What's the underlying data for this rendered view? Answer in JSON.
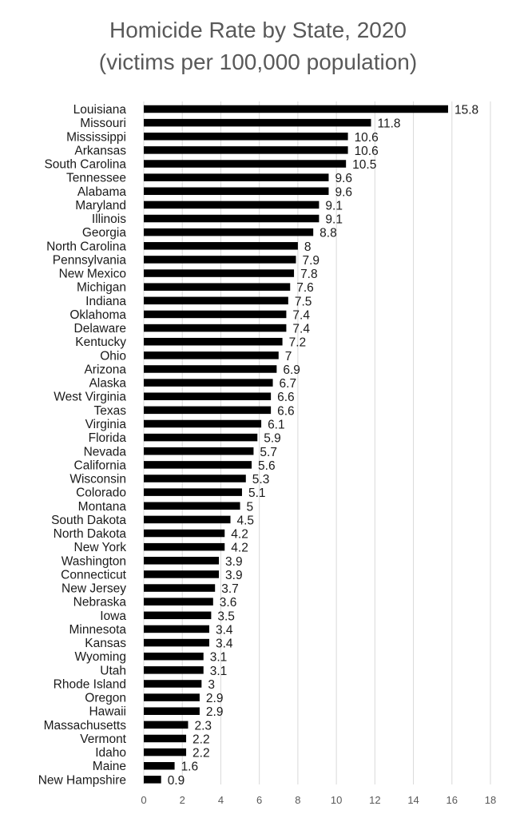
{
  "chart_data": {
    "type": "bar",
    "orientation": "horizontal",
    "title": "Homicide Rate by State, 2020",
    "subtitle": "(victims per 100,000 population)",
    "xlabel": "",
    "ylabel": "",
    "xlim": [
      0,
      18
    ],
    "x_ticks": [
      "0",
      "2",
      "4",
      "6",
      "8",
      "10",
      "12",
      "14",
      "16",
      "18"
    ],
    "grid": "vertical",
    "legend": "none",
    "bar_color": "#000000",
    "categories": [
      "Louisiana",
      "Missouri",
      "Mississippi",
      "Arkansas",
      "South Carolina",
      "Tennessee",
      "Alabama",
      "Maryland",
      "Illinois",
      "Georgia",
      "North Carolina",
      "Pennsylvania",
      "New Mexico",
      "Michigan",
      "Indiana",
      "Oklahoma",
      "Delaware",
      "Kentucky",
      "Ohio",
      "Arizona",
      "Alaska",
      "West Virginia",
      "Texas",
      "Virginia",
      "Florida",
      "Nevada",
      "California",
      "Wisconsin",
      "Colorado",
      "Montana",
      "South Dakota",
      "North Dakota",
      "New York",
      "Washington",
      "Connecticut",
      "New Jersey",
      "Nebraska",
      "Iowa",
      "Minnesota",
      "Kansas",
      "Wyoming",
      "Utah",
      "Rhode Island",
      "Oregon",
      "Hawaii",
      "Massachusetts",
      "Vermont",
      "Idaho",
      "Maine",
      "New Hampshire"
    ],
    "values": [
      15.8,
      11.8,
      10.6,
      10.6,
      10.5,
      9.6,
      9.6,
      9.1,
      9.1,
      8.8,
      8,
      7.9,
      7.8,
      7.6,
      7.5,
      7.4,
      7.4,
      7.2,
      7,
      6.9,
      6.7,
      6.6,
      6.6,
      6.1,
      5.9,
      5.7,
      5.6,
      5.3,
      5.1,
      5,
      4.5,
      4.2,
      4.2,
      3.9,
      3.9,
      3.7,
      3.6,
      3.5,
      3.4,
      3.4,
      3.1,
      3.1,
      3,
      2.9,
      2.9,
      2.3,
      2.2,
      2.2,
      1.6,
      0.9
    ],
    "value_labels": [
      "15.8",
      "11.8",
      "10.6",
      "10.6",
      "10.5",
      "9.6",
      "9.6",
      "9.1",
      "9.1",
      "8.8",
      "8",
      "7.9",
      "7.8",
      "7.6",
      "7.5",
      "7.4",
      "7.4",
      "7.2",
      "7",
      "6.9",
      "6.7",
      "6.6",
      "6.6",
      "6.1",
      "5.9",
      "5.7",
      "5.6",
      "5.3",
      "5.1",
      "5",
      "4.5",
      "4.2",
      "4.2",
      "3.9",
      "3.9",
      "3.7",
      "3.6",
      "3.5",
      "3.4",
      "3.4",
      "3.1",
      "3.1",
      "3",
      "2.9",
      "2.9",
      "2.3",
      "2.2",
      "2.2",
      "1.6",
      "0.9"
    ]
  }
}
